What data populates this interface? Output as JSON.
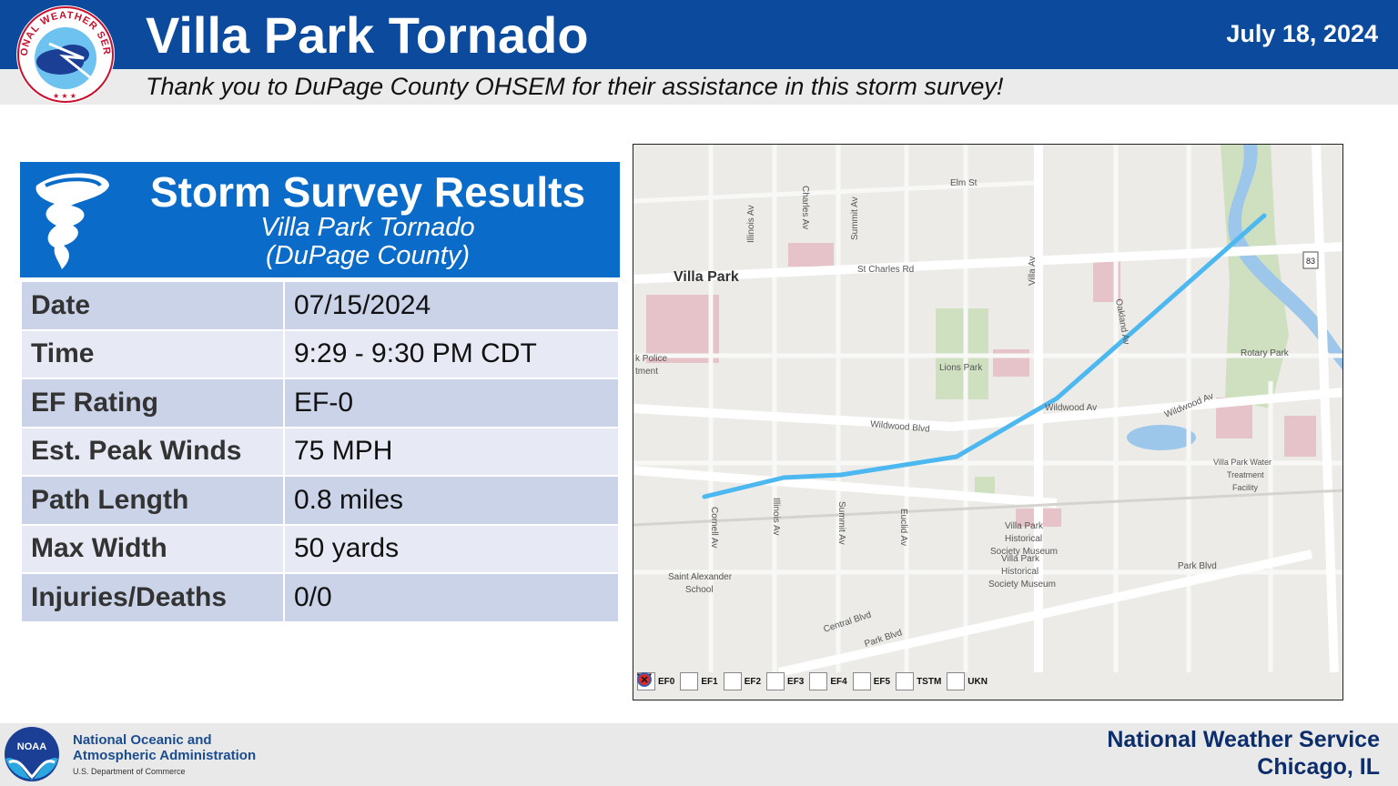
{
  "header": {
    "title": "Villa Park Tornado",
    "date": "July 18, 2024",
    "thanks": "Thank you to DuPage County OHSEM for their assistance in this storm survey!",
    "logo_text": "NATIONAL WEATHER SERVICE"
  },
  "card": {
    "title": "Storm Survey Results",
    "subtitle1": "Villa Park Tornado",
    "subtitle2": "(DuPage County)",
    "rows": [
      {
        "label": "Date",
        "value": "07/15/2024"
      },
      {
        "label": "Time",
        "value": "9:29 - 9:30 PM CDT"
      },
      {
        "label": "EF Rating",
        "value": "EF-0"
      },
      {
        "label": "Est. Peak Winds",
        "value": "75 MPH"
      },
      {
        "label": "Path Length",
        "value": "0.8 miles"
      },
      {
        "label": "Max Width",
        "value": "50 yards"
      },
      {
        "label": "Injuries/Deaths",
        "value": "0/0"
      }
    ]
  },
  "map": {
    "labels": {
      "villa_park": "Villa Park",
      "elm_st": "Elm St",
      "st_charles": "St Charles Rd",
      "illinois_av_n": "Illinois Av",
      "charles_av": "Charles Av",
      "summit_av_n": "Summit Av",
      "villa_av": "Villa Av",
      "oakland_av": "Oakland Av",
      "rt83": "83",
      "police1": "k Police",
      "police2": "tment",
      "lions_park": "Lions Park",
      "rotary_park": "Rotary Park",
      "wildwood_blvd": "Wildwood Blvd",
      "wildwood_av1": "Wildwood Av",
      "wildwood_av2": "Wildwood Av",
      "water1": "Villa Park Water",
      "water2": "Treatment",
      "water3": "Facility",
      "cornell_av": "Cornell Av",
      "illinois_av_s": "Illinois Av",
      "summit_av_s": "Summit Av",
      "euclid_av": "Euclid Av",
      "museum_a1": "Villa Park",
      "museum_a2": "Historical",
      "museum_a3": "Society Museum",
      "museum_b1": "Villa Park",
      "museum_b2": "Historical",
      "museum_b3": "Society Museum",
      "park_blvd1": "Park Blvd",
      "park_blvd2": "Park Blvd",
      "central_blvd": "Central Blvd",
      "school1": "Saint Alexander",
      "school2": "School"
    },
    "track_color": "#4db8f0",
    "legend": [
      {
        "label": "EF0",
        "color": "#2de0c8"
      },
      {
        "label": "EF1",
        "color": "#33e033"
      },
      {
        "label": "EF2",
        "color": "#f2f21a"
      },
      {
        "label": "EF3",
        "color": "#f29a1a"
      },
      {
        "label": "EF4",
        "color": "#e01a1a"
      },
      {
        "label": "EF5",
        "color": "#c21aa6"
      },
      {
        "label": "TSTM",
        "color": "#1ab31a"
      },
      {
        "label": "UKN",
        "color": "#e02a2a"
      }
    ]
  },
  "footer": {
    "noaa_line1": "National Oceanic and",
    "noaa_line2": "Atmospheric Administration",
    "noaa_line3": "U.S. Department of Commerce",
    "noaa_logo_text": "NOAA",
    "nws_line1": "National Weather Service",
    "nws_line2": "Chicago, IL"
  }
}
